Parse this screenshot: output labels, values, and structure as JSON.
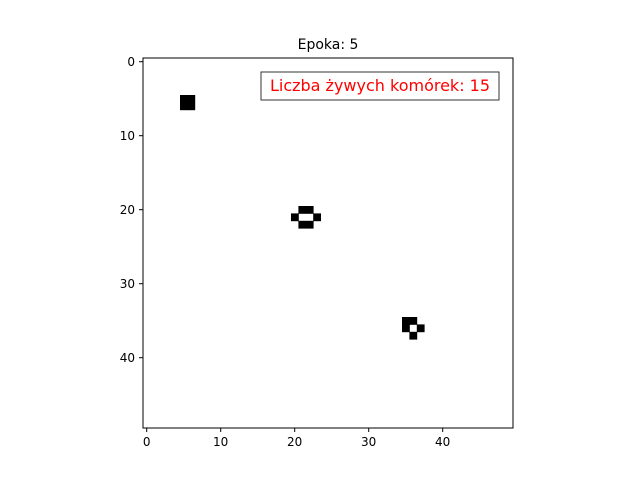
{
  "chart_data": {
    "type": "heatmap",
    "title": "Epoka: 5",
    "xlabel": "",
    "ylabel": "",
    "grid_size": [
      50,
      50
    ],
    "xlim": [
      -0.5,
      49.5
    ],
    "ylim": [
      49.5,
      -0.5
    ],
    "x_ticks": [
      0,
      10,
      20,
      30,
      40
    ],
    "y_ticks": [
      0,
      10,
      20,
      30,
      40
    ],
    "grid": false,
    "colors": {
      "alive": "#000000",
      "dead": "#ffffff",
      "annotation": "#ff0000"
    },
    "annotation": {
      "text": "Liczba żywych komórek: 15",
      "placement": "top-right"
    },
    "alive_cells": [
      {
        "x": 5,
        "y": 5
      },
      {
        "x": 6,
        "y": 5
      },
      {
        "x": 5,
        "y": 6
      },
      {
        "x": 6,
        "y": 6
      },
      {
        "x": 21,
        "y": 20
      },
      {
        "x": 22,
        "y": 20
      },
      {
        "x": 20,
        "y": 21
      },
      {
        "x": 23,
        "y": 21
      },
      {
        "x": 21,
        "y": 22
      },
      {
        "x": 22,
        "y": 22
      },
      {
        "x": 35,
        "y": 35
      },
      {
        "x": 36,
        "y": 35
      },
      {
        "x": 35,
        "y": 36
      },
      {
        "x": 37,
        "y": 36
      },
      {
        "x": 36,
        "y": 37
      }
    ]
  }
}
